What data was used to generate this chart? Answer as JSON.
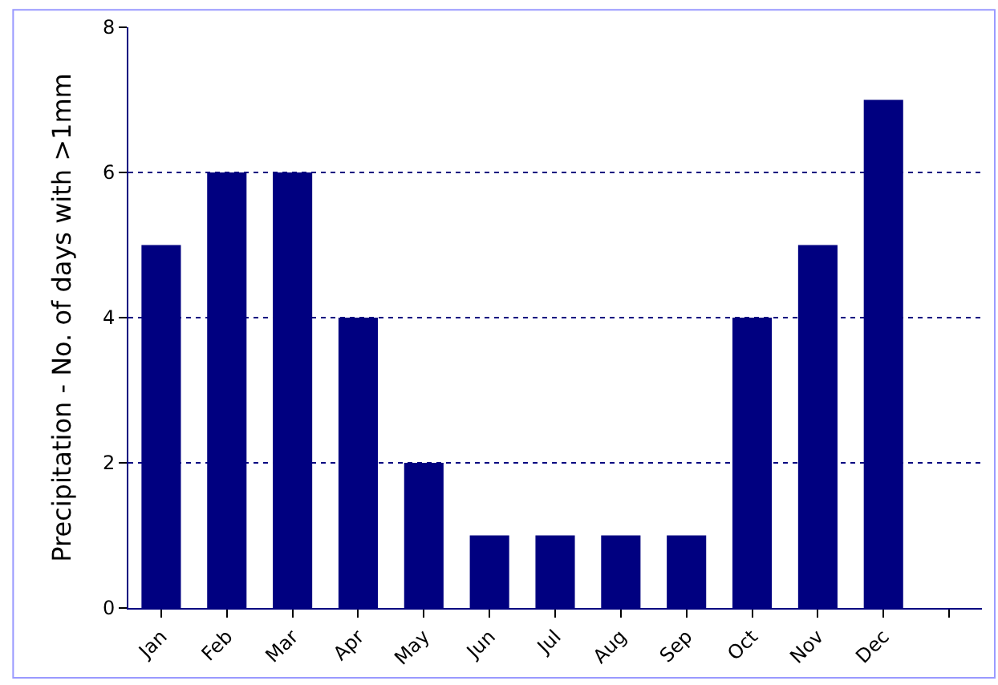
{
  "chart_data": {
    "type": "bar",
    "ylabel": "Precipitation - No. of days with >1mm",
    "categories": [
      "Jan",
      "Feb",
      "Mar",
      "Apr",
      "May",
      "Jun",
      "Jul",
      "Aug",
      "Sep",
      "Oct",
      "Nov",
      "Dec",
      null
    ],
    "values": [
      5,
      6,
      6,
      4,
      2,
      1,
      1,
      1,
      1,
      4,
      5,
      7,
      null
    ],
    "color": "#000080",
    "ylim": [
      0,
      8
    ],
    "yticks": [
      0,
      2,
      4,
      6,
      8
    ],
    "grid": "y"
  }
}
